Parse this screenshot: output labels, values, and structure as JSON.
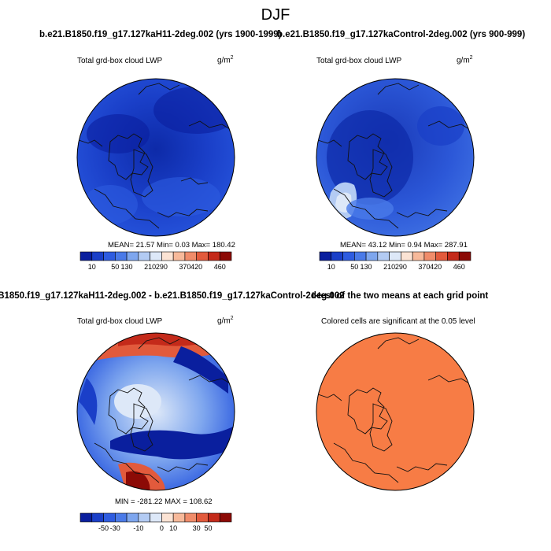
{
  "header": {
    "title": "DJF"
  },
  "colors": {
    "cbar_pos": [
      "#0a1f9e",
      "#1a3fc8",
      "#2e5ce0",
      "#4a7ae8",
      "#7ea6ee",
      "#b3cbf3",
      "#dde8f8",
      "#fbe3d4",
      "#f7b99a",
      "#f08c6a",
      "#e25a3c",
      "#c42a1a",
      "#8c0a06"
    ],
    "cbar_diff": [
      "#0a1f9e",
      "#1a3fc8",
      "#2e5ce0",
      "#4a7ae8",
      "#7ea6ee",
      "#b3cbf3",
      "#dde8f8",
      "#fbe3d4",
      "#f7b99a",
      "#f08c6a",
      "#e25a3c",
      "#c42a1a",
      "#8c0a06"
    ],
    "signif": "#f77c45"
  },
  "chart_data": [
    {
      "type": "heatmap",
      "title": "b.e21.B1850.f19_g17.127kaH11-2deg.002 (yrs 1900-1999)",
      "subtitle": "Total grd-box cloud LWP",
      "units_base": "g/m",
      "units_exp": "2",
      "stats": {
        "mean": 21.57,
        "min": 0.03,
        "max": 180.42
      },
      "stats_text": "MEAN=  21.57  Min=   0.03  Max= 180.42",
      "colorbar_ticks": [
        "10",
        "50",
        "130",
        "210",
        "290",
        "370",
        "420",
        "460"
      ]
    },
    {
      "type": "heatmap",
      "title": "b.e21.B1850.f19_g17.127kaControl-2deg.002 (yrs 900-999)",
      "subtitle": "Total grd-box cloud LWP",
      "units_base": "g/m",
      "units_exp": "2",
      "stats": {
        "mean": 43.12,
        "min": 0.94,
        "max": 287.91
      },
      "stats_text": "MEAN=  43.12  Min=   0.94  Max= 287.91",
      "colorbar_ticks": [
        "10",
        "50",
        "130",
        "210",
        "290",
        "370",
        "420",
        "460"
      ]
    },
    {
      "type": "heatmap",
      "title": ".B1850.f19_g17.127kaH11-2deg.002 - b.e21.B1850.f19_g17.127kaControl-2deg.002",
      "subtitle": "Total grd-box cloud LWP",
      "units_base": "g/m",
      "units_exp": "2",
      "stats": {
        "min": -281.22,
        "max": 108.62
      },
      "stats_text": "MIN = -281.22  MAX = 108.62",
      "colorbar_ticks": [
        "-50",
        "-30",
        "-10",
        "0",
        "10",
        "30",
        "50"
      ]
    },
    {
      "type": "heatmap",
      "title": "t-test of the two means at each grid point",
      "subtitle": "Colored cells are significant at the 0.05 level"
    }
  ]
}
